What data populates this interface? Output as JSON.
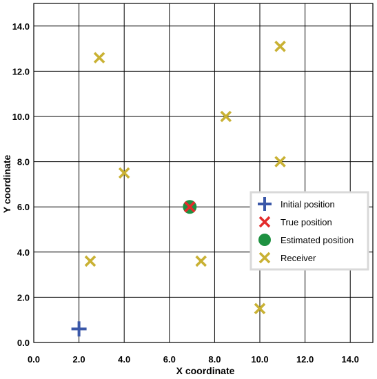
{
  "chart_data": {
    "type": "scatter",
    "title": "",
    "xlabel": "X coordinate",
    "ylabel": "Y coordinate",
    "xlim": [
      0,
      15
    ],
    "ylim": [
      0,
      15
    ],
    "xticks": [
      0,
      2,
      4,
      6,
      8,
      10,
      12,
      14
    ],
    "yticks": [
      0,
      2,
      4,
      6,
      8,
      10,
      12,
      14
    ],
    "xtick_labels": [
      "0.0",
      "2.0",
      "4.0",
      "6.0",
      "8.0",
      "10.0",
      "12.0",
      "14.0"
    ],
    "ytick_labels": [
      "0.0",
      "2.0",
      "4.0",
      "6.0",
      "8.0",
      "10.0",
      "12.0",
      "14.0"
    ],
    "grid": true,
    "legend_position": "right",
    "series": [
      {
        "name": "Initial position",
        "marker": "plus",
        "color": "#3a57a8",
        "points": [
          {
            "x": 2.0,
            "y": 0.6
          }
        ]
      },
      {
        "name": "True position",
        "marker": "x",
        "color": "#e32b2b",
        "points": [
          {
            "x": 6.9,
            "y": 6.0
          }
        ]
      },
      {
        "name": "Estimated position",
        "marker": "circle",
        "color": "#1e9141",
        "points": [
          {
            "x": 6.9,
            "y": 6.0
          }
        ]
      },
      {
        "name": "Receiver",
        "marker": "x",
        "color": "#c9b133",
        "points": [
          {
            "x": 2.9,
            "y": 12.6
          },
          {
            "x": 10.9,
            "y": 13.1
          },
          {
            "x": 8.5,
            "y": 10.0
          },
          {
            "x": 10.9,
            "y": 8.0
          },
          {
            "x": 4.0,
            "y": 7.5
          },
          {
            "x": 2.5,
            "y": 3.6
          },
          {
            "x": 7.4,
            "y": 3.6
          },
          {
            "x": 10.0,
            "y": 1.5
          }
        ]
      }
    ]
  }
}
